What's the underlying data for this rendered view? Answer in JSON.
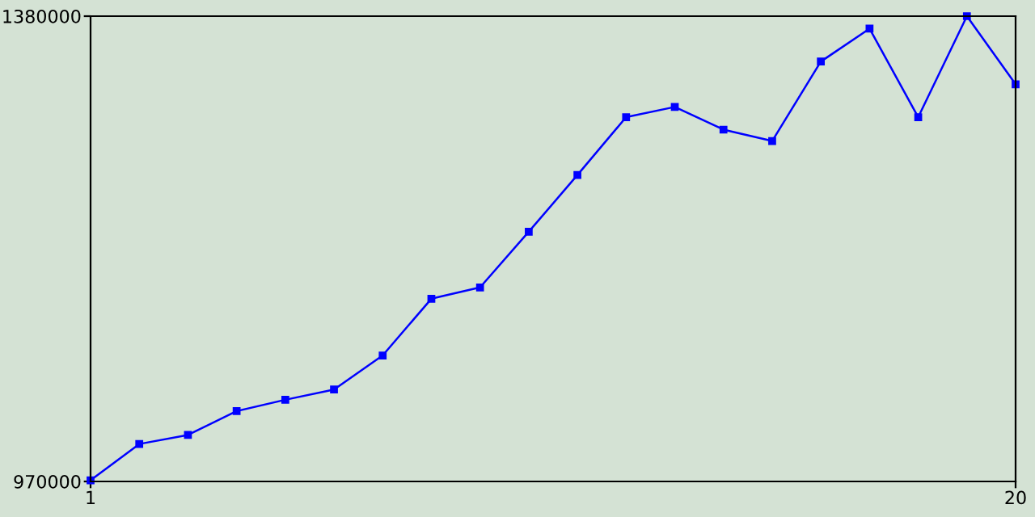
{
  "chart_data": {
    "type": "line",
    "x": [
      1,
      2,
      3,
      4,
      5,
      6,
      7,
      8,
      9,
      10,
      11,
      12,
      13,
      14,
      15,
      16,
      17,
      18,
      19,
      20
    ],
    "series": [
      {
        "color": "#0000ff",
        "values": [
          971000,
          1003000,
          1011000,
          1032000,
          1042000,
          1051000,
          1081000,
          1131000,
          1141000,
          1190000,
          1240000,
          1291000,
          1300000,
          1280000,
          1270000,
          1340000,
          1369000,
          1291000,
          1380000,
          1320000
        ]
      }
    ],
    "xlim": [
      1,
      20
    ],
    "xticks": [
      1,
      20
    ],
    "ylim": [
      970000,
      1380000
    ],
    "yticks": [
      970000,
      1380000
    ],
    "grid": false,
    "legend": false,
    "marker": "square",
    "line_style": "solid"
  }
}
